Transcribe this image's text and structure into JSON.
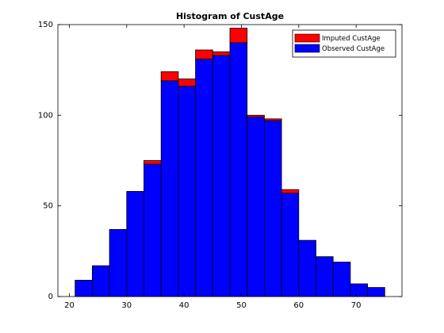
{
  "chart_data": {
    "type": "histogram",
    "title": "Histogram of CustAge",
    "bins": [
      21,
      24,
      27,
      30,
      33,
      36,
      39,
      42,
      45,
      48,
      51,
      54,
      57,
      60,
      63,
      66,
      69,
      72,
      75
    ],
    "series": [
      {
        "name": "Imputed CustAge",
        "color": "#ff0000",
        "values": [
          0,
          0,
          0,
          0,
          2,
          5,
          4,
          5,
          2,
          8,
          1,
          1,
          2,
          0,
          0,
          0,
          0,
          0
        ]
      },
      {
        "name": "Observed CustAge",
        "color": "#0000ff",
        "values": [
          9,
          17,
          37,
          58,
          73,
          119,
          116,
          131,
          133,
          140,
          99,
          97,
          57,
          31,
          22,
          19,
          7,
          5
        ]
      }
    ],
    "xlim": [
      18,
      78
    ],
    "xticks": [
      20,
      30,
      40,
      50,
      60,
      70
    ],
    "ylim": [
      0,
      150
    ],
    "yticks": [
      0,
      50,
      100,
      150
    ],
    "legend": "top-right"
  }
}
